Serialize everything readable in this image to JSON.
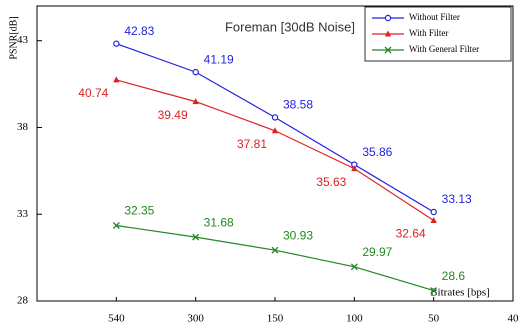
{
  "chart_data": {
    "type": "line",
    "title": "Foreman [30dB Noise]",
    "y_label": "PSNR[dB]",
    "x_label": "Bitrates [bps]",
    "categories": [
      "540",
      "300",
      "150",
      "100",
      "50",
      "40"
    ],
    "ylim": [
      28,
      45
    ],
    "yticks": [
      28,
      33,
      38,
      43
    ],
    "legend": "upper right",
    "series": [
      {
        "name": "Without Filter",
        "color": "#2222dd",
        "marker": "circle",
        "values": [
          42.83,
          41.19,
          38.58,
          35.86,
          33.13,
          null
        ]
      },
      {
        "name": "With Filter",
        "color": "#dd2222",
        "marker": "triangle",
        "values": [
          40.74,
          39.49,
          37.81,
          35.63,
          32.64,
          null
        ]
      },
      {
        "name": "With General Filter",
        "color": "#228822",
        "marker": "x",
        "values": [
          32.35,
          31.68,
          30.93,
          29.97,
          28.6,
          null
        ]
      }
    ]
  }
}
